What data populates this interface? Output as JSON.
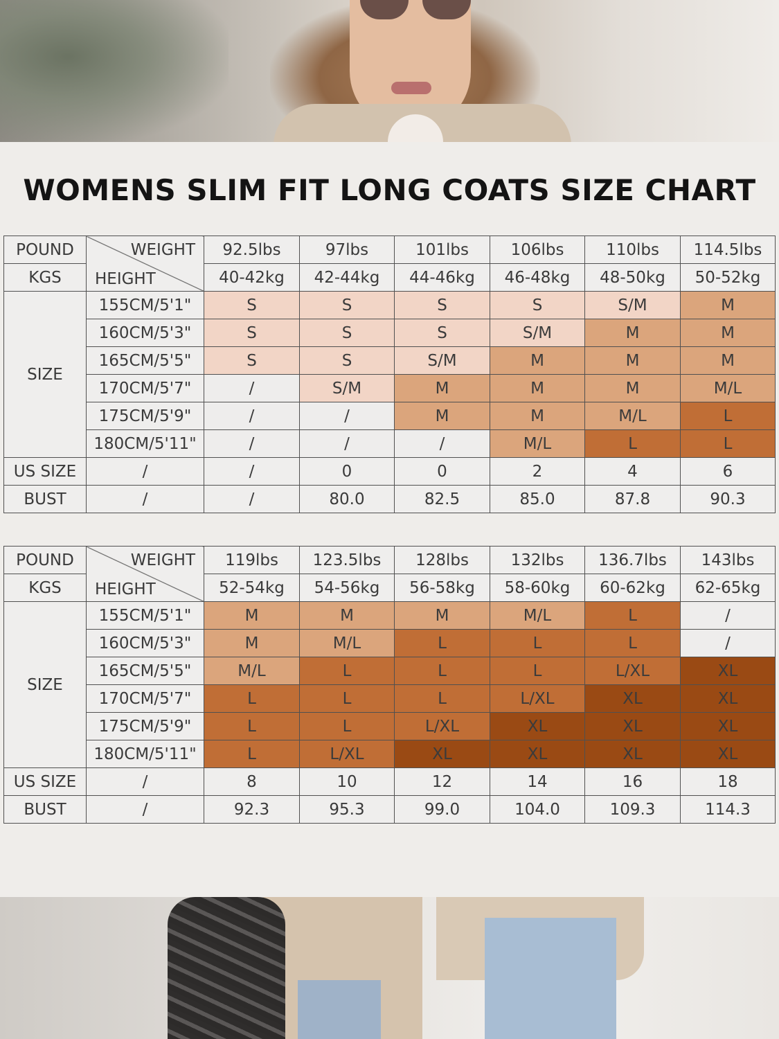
{
  "title": "WOMENS SLIM FIT LONG COATS SIZE CHART",
  "labels": {
    "pound": "POUND",
    "kgs": "KGS",
    "weight": "WEIGHT",
    "height": "HEIGHT",
    "size": "SIZE",
    "us_size": "US SIZE",
    "bust": "BUST"
  },
  "colors": {
    "none": "#eeedec",
    "S": "#f2d5c6",
    "M": "#dba57c",
    "L": "#c06e36",
    "XL": "#9a4a14"
  },
  "tables": [
    {
      "pounds": [
        "92.5lbs",
        "97lbs",
        "101lbs",
        "106lbs",
        "110lbs",
        "114.5lbs"
      ],
      "kgs": [
        "40-42kg",
        "42-44kg",
        "44-46kg",
        "46-48kg",
        "48-50kg",
        "50-52kg"
      ],
      "heights": [
        "155CM/5'1\"",
        "160CM/5'3\"",
        "165CM/5'5\"",
        "170CM/5'7\"",
        "175CM/5'9\"",
        "180CM/5'11\""
      ],
      "sizes": [
        [
          "S",
          "S",
          "S",
          "S",
          "S/M",
          "M"
        ],
        [
          "S",
          "S",
          "S",
          "S/M",
          "M",
          "M"
        ],
        [
          "S",
          "S",
          "S/M",
          "M",
          "M",
          "M"
        ],
        [
          "/",
          "S/M",
          "M",
          "M",
          "M",
          "M/L"
        ],
        [
          "/",
          "/",
          "M",
          "M",
          "M/L",
          "L"
        ],
        [
          "/",
          "/",
          "/",
          "M/L",
          "L",
          "L"
        ]
      ],
      "us_size_first": "/",
      "us_size": [
        "/",
        "0",
        "0",
        "2",
        "4",
        "6"
      ],
      "bust_first": "/",
      "bust": [
        "/",
        "80.0",
        "82.5",
        "85.0",
        "87.8",
        "90.3"
      ]
    },
    {
      "pounds": [
        "119lbs",
        "123.5lbs",
        "128lbs",
        "132lbs",
        "136.7lbs",
        "143lbs"
      ],
      "kgs": [
        "52-54kg",
        "54-56kg",
        "56-58kg",
        "58-60kg",
        "60-62kg",
        "62-65kg"
      ],
      "heights": [
        "155CM/5'1\"",
        "160CM/5'3\"",
        "165CM/5'5\"",
        "170CM/5'7\"",
        "175CM/5'9\"",
        "180CM/5'11\""
      ],
      "sizes": [
        [
          "M",
          "M",
          "M",
          "M/L",
          "L",
          "/"
        ],
        [
          "M",
          "M/L",
          "L",
          "L",
          "L",
          "/"
        ],
        [
          "M/L",
          "L",
          "L",
          "L",
          "L/XL",
          "XL"
        ],
        [
          "L",
          "L",
          "L",
          "L/XL",
          "XL",
          "XL"
        ],
        [
          "L",
          "L",
          "L/XL",
          "XL",
          "XL",
          "XL"
        ],
        [
          "L",
          "L/XL",
          "XL",
          "XL",
          "XL",
          "XL"
        ]
      ],
      "us_size_first": "/",
      "us_size": [
        "8",
        "10",
        "12",
        "14",
        "16",
        "18"
      ],
      "bust_first": "/",
      "bust": [
        "92.3",
        "95.3",
        "99.0",
        "104.0",
        "109.3",
        "114.3"
      ]
    }
  ]
}
